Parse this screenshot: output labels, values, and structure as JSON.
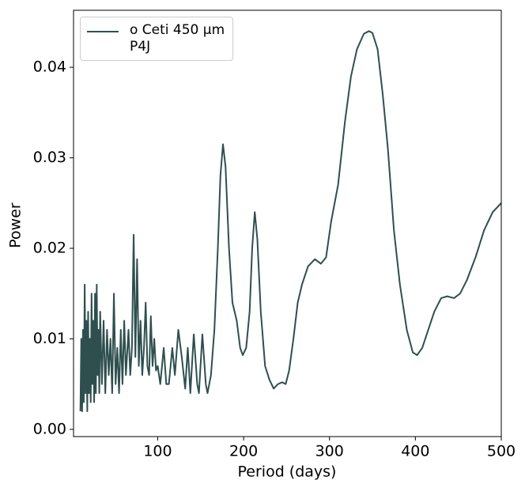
{
  "chart_data": {
    "type": "line",
    "xlabel": "Period (days)",
    "ylabel": "Power",
    "x": [
      10,
      11,
      12,
      13,
      14,
      15,
      16,
      17,
      18,
      19,
      20,
      21,
      22,
      23,
      24,
      25,
      26,
      27,
      28,
      29,
      30,
      31,
      32,
      33,
      35,
      37,
      39,
      41,
      43,
      45,
      47,
      49,
      51,
      53,
      55,
      57,
      59,
      61,
      63,
      66,
      68,
      70,
      72,
      74,
      76,
      78,
      80,
      82,
      84,
      86,
      88,
      90,
      92,
      94,
      96,
      98,
      100,
      103,
      107,
      110,
      113,
      117,
      120,
      124,
      128,
      132,
      135,
      138,
      142,
      146,
      148,
      152,
      156,
      158,
      162,
      166,
      170,
      173,
      176,
      179,
      183,
      187,
      192,
      196,
      199,
      203,
      207,
      210,
      213,
      216,
      220,
      225,
      230,
      235,
      240,
      245,
      249,
      253,
      258,
      263,
      268,
      275,
      283,
      290,
      296,
      302,
      310,
      318,
      325,
      332,
      340,
      346,
      350,
      356,
      362,
      368,
      375,
      382,
      390,
      397,
      402,
      408,
      415,
      422,
      430,
      437,
      445,
      452,
      460,
      470,
      480,
      490,
      500
    ],
    "series": [
      {
        "name": "o Ceti 450 μm\n P4J",
        "color": "#2f4f4f",
        "values": [
          0.002,
          0.01,
          0.002,
          0.011,
          0.003,
          0.016,
          0.004,
          0.012,
          0.002,
          0.013,
          0.004,
          0.01,
          0.003,
          0.015,
          0.005,
          0.012,
          0.003,
          0.015,
          0.004,
          0.016,
          0.006,
          0.011,
          0.004,
          0.013,
          0.005,
          0.012,
          0.004,
          0.011,
          0.006,
          0.01,
          0.004,
          0.015,
          0.005,
          0.009,
          0.004,
          0.011,
          0.005,
          0.012,
          0.006,
          0.011,
          0.006,
          0.009,
          0.0215,
          0.008,
          0.0188,
          0.007,
          0.012,
          0.006,
          0.009,
          0.014,
          0.007,
          0.006,
          0.0125,
          0.007,
          0.01,
          0.0065,
          0.007,
          0.005,
          0.009,
          0.005,
          0.005,
          0.009,
          0.006,
          0.011,
          0.008,
          0.0045,
          0.009,
          0.004,
          0.0105,
          0.005,
          0.004,
          0.0105,
          0.005,
          0.004,
          0.006,
          0.011,
          0.02,
          0.028,
          0.0315,
          0.029,
          0.02,
          0.014,
          0.012,
          0.009,
          0.0082,
          0.009,
          0.013,
          0.02,
          0.024,
          0.021,
          0.013,
          0.007,
          0.0055,
          0.0045,
          0.005,
          0.0052,
          0.005,
          0.0065,
          0.01,
          0.014,
          0.016,
          0.018,
          0.0188,
          0.0183,
          0.019,
          0.023,
          0.027,
          0.034,
          0.039,
          0.042,
          0.0437,
          0.044,
          0.0438,
          0.042,
          0.037,
          0.031,
          0.022,
          0.016,
          0.011,
          0.0085,
          0.0082,
          0.009,
          0.011,
          0.013,
          0.0145,
          0.0147,
          0.0145,
          0.015,
          0.0165,
          0.019,
          0.022,
          0.024,
          0.025
        ]
      }
    ],
    "xlim": [
      2,
      500
    ],
    "ylim": [
      -0.0008,
      0.0463
    ],
    "xticks": [
      100,
      200,
      300,
      400,
      500
    ],
    "yticks": [
      {
        "value": 0,
        "label": "0.00"
      },
      0.01,
      0.02,
      0.03,
      0.04
    ],
    "legend": "upper left"
  }
}
